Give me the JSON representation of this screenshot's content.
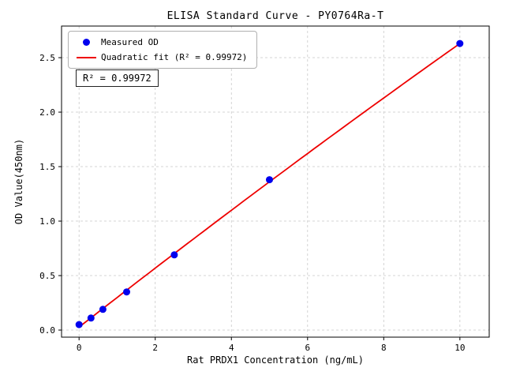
{
  "chart_data": {
    "type": "scatter",
    "title": "ELISA Standard Curve - PY0764Ra-T",
    "xlabel": "Rat PRDX1 Concentration (ng/mL)",
    "ylabel": "OD Value(450nm)",
    "xlim": [
      -0.46,
      10.77
    ],
    "ylim": [
      -0.065,
      2.79
    ],
    "x_ticks": [
      0,
      2,
      4,
      6,
      8,
      10
    ],
    "y_ticks": [
      0.0,
      0.5,
      1.0,
      1.5,
      2.0,
      2.5
    ],
    "grid": true,
    "grid_style": "dashed",
    "legend_position": "upper left",
    "series": [
      {
        "name": "Measured OD",
        "type": "scatter",
        "color": "#0000ee",
        "x": [
          0,
          0.3125,
          0.625,
          1.25,
          2.5,
          5,
          10
        ],
        "y": [
          0.05,
          0.11,
          0.19,
          0.35,
          0.69,
          1.38,
          2.63
        ]
      },
      {
        "name": "Quadratic fit (R² = 0.99972)",
        "type": "line",
        "color": "#ee0000",
        "fit_coeffs": [
          0.027,
          0.2733,
          -0.0013
        ],
        "x_range": [
          0,
          10
        ]
      }
    ],
    "annotation": "R² = 0.99972",
    "r_squared": 0.99972,
    "colors": {
      "points": "#0000ee",
      "fit_line": "#ee0000",
      "grid": "#c9c9c9",
      "axis": "#000000"
    }
  }
}
